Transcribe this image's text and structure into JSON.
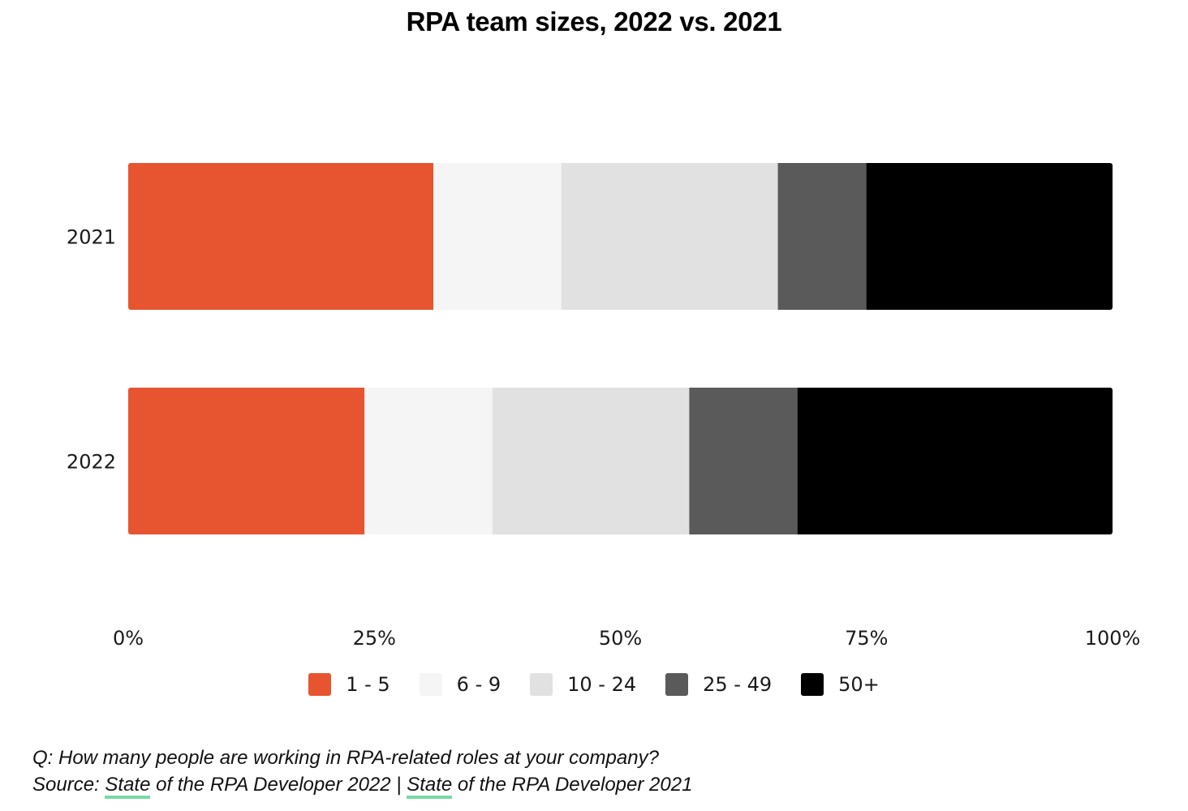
{
  "title": "RPA team sizes, 2022 vs. 2021",
  "legend": [
    {
      "label": "1 - 5",
      "color": "#e65530"
    },
    {
      "label": "6 - 9",
      "color": "#f5f5f5"
    },
    {
      "label": "10 - 24",
      "color": "#e1e1e1"
    },
    {
      "label": "25 - 49",
      "color": "#5a5a5a"
    },
    {
      "label": "50+",
      "color": "#000000"
    }
  ],
  "footnote": {
    "question": "Q: How many people are working in RPA-related roles at your company?",
    "source_prefix": "Source: ",
    "source1_link": "State",
    "source1_rest": " of the RPA Developer 2022",
    "separator": " | ",
    "source2_link": "State",
    "source2_rest": " of the RPA Developer 2021"
  },
  "chart_data": {
    "type": "bar",
    "orientation": "horizontal",
    "stacked": true,
    "normalized": true,
    "title": "RPA team sizes, 2022 vs. 2021",
    "categories": [
      "2021",
      "2022"
    ],
    "series": [
      {
        "name": "1 - 5",
        "color": "#e65530",
        "values": [
          31,
          24
        ]
      },
      {
        "name": "6 - 9",
        "color": "#f5f5f5",
        "values": [
          13,
          13
        ]
      },
      {
        "name": "10 - 24",
        "color": "#e1e1e1",
        "values": [
          22,
          20
        ]
      },
      {
        "name": "25 - 49",
        "color": "#5a5a5a",
        "values": [
          9,
          11
        ]
      },
      {
        "name": "50+",
        "color": "#000000",
        "values": [
          25,
          32
        ]
      }
    ],
    "xlim": [
      0,
      100
    ],
    "x_ticks": [
      "0%",
      "25%",
      "50%",
      "75%",
      "100%"
    ],
    "xlabel": "",
    "ylabel": "",
    "grid": false,
    "legend_position": "bottom"
  }
}
